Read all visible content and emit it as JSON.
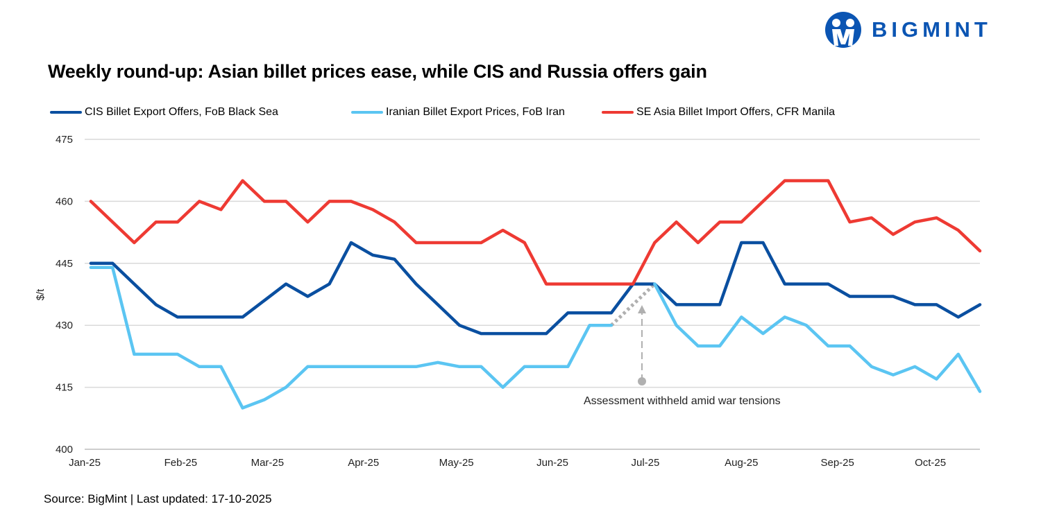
{
  "header": {
    "logo_text": "BIGMINT",
    "brand_color": "#0b55b3"
  },
  "source": "Source: BigMint | Last updated: 17-10-2025",
  "chart_data": {
    "type": "line",
    "title": "Weekly round-up: Asian billet prices ease, while CIS and Russia offers gain",
    "xlabel": "",
    "ylabel": "$/t",
    "ylim": [
      400,
      475
    ],
    "yticks": [
      "400",
      "415",
      "430",
      "445",
      "460",
      "475"
    ],
    "xticks": [
      {
        "label": "Jan-25",
        "date": "2025-01-01"
      },
      {
        "label": "Feb-25",
        "date": "2025-02-01"
      },
      {
        "label": "Mar-25",
        "date": "2025-03-01"
      },
      {
        "label": "Apr-25",
        "date": "2025-04-01"
      },
      {
        "label": "May-25",
        "date": "2025-05-01"
      },
      {
        "label": "Jun-25",
        "date": "2025-06-01"
      },
      {
        "label": "Jul-25",
        "date": "2025-07-01"
      },
      {
        "label": "Aug-25",
        "date": "2025-08-01"
      },
      {
        "label": "Sep-25",
        "date": "2025-09-01"
      },
      {
        "label": "Oct-25",
        "date": "2025-10-01"
      }
    ],
    "xlim": [
      "2025-01-01",
      "2025-10-17"
    ],
    "grid": "horizontal",
    "legend": "top",
    "x": [
      "2025-01-03",
      "2025-01-10",
      "2025-01-17",
      "2025-01-24",
      "2025-01-31",
      "2025-02-07",
      "2025-02-14",
      "2025-02-21",
      "2025-02-28",
      "2025-03-07",
      "2025-03-14",
      "2025-03-21",
      "2025-03-28",
      "2025-04-04",
      "2025-04-11",
      "2025-04-18",
      "2025-04-25",
      "2025-05-02",
      "2025-05-09",
      "2025-05-16",
      "2025-05-23",
      "2025-05-30",
      "2025-06-06",
      "2025-06-13",
      "2025-06-20",
      "2025-06-27",
      "2025-07-04",
      "2025-07-11",
      "2025-07-18",
      "2025-07-25",
      "2025-08-01",
      "2025-08-08",
      "2025-08-15",
      "2025-08-22",
      "2025-08-29",
      "2025-09-05",
      "2025-09-12",
      "2025-09-19",
      "2025-09-26",
      "2025-10-03",
      "2025-10-10",
      "2025-10-17"
    ],
    "series": [
      {
        "name": "CIS Billet Export Offers, FoB Black Sea",
        "color": "#0a4fa0",
        "values": [
          445,
          445,
          440,
          435,
          432,
          432,
          432,
          432,
          436,
          440,
          437,
          440,
          450,
          447,
          446,
          440,
          435,
          430,
          428,
          428,
          428,
          428,
          433,
          433,
          433,
          440,
          440,
          435,
          435,
          435,
          450,
          450,
          440,
          440,
          440,
          437,
          437,
          437,
          435,
          435,
          432,
          435
        ]
      },
      {
        "name": "Iranian Billet Export Prices, FoB Iran",
        "color": "#5bc5f2",
        "values": [
          444,
          444,
          423,
          423,
          423,
          420,
          420,
          410,
          412,
          415,
          420,
          420,
          420,
          420,
          420,
          420,
          421,
          420,
          420,
          415,
          420,
          420,
          420,
          430,
          430,
          null,
          440,
          430,
          425,
          425,
          432,
          428,
          432,
          430,
          425,
          425,
          420,
          418,
          420,
          417,
          423,
          414
        ]
      },
      {
        "name": "SE Asia Billet Import Offers, CFR Manila",
        "color": "#ee3a33",
        "values": [
          460,
          455,
          450,
          455,
          455,
          460,
          458,
          465,
          460,
          460,
          455,
          460,
          460,
          458,
          455,
          450,
          450,
          450,
          450,
          453,
          450,
          440,
          440,
          440,
          440,
          440,
          450,
          455,
          450,
          455,
          455,
          460,
          465,
          465,
          465,
          455,
          456,
          452,
          455,
          456,
          453,
          448
        ]
      }
    ],
    "annotation": {
      "text": "Assessment withheld amid  war tensions",
      "gap_from": "2025-06-20",
      "gap_to": "2025-07-04",
      "color": "#b0b0b0"
    }
  }
}
